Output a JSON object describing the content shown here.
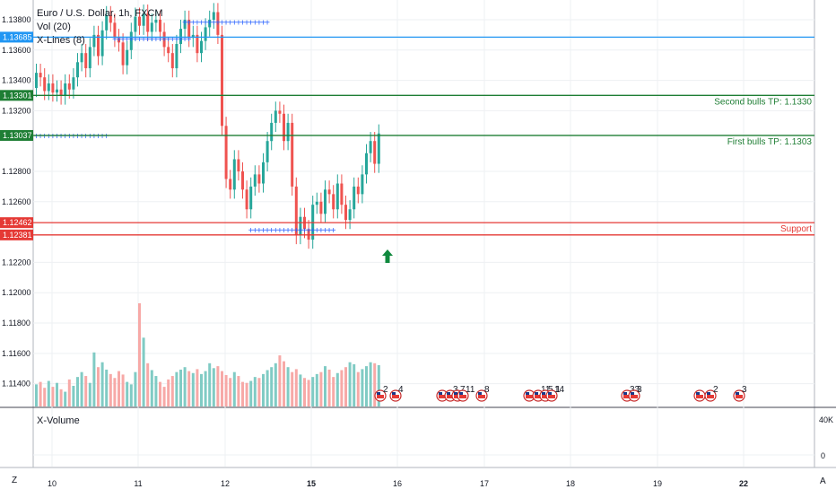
{
  "header": {
    "title": "Euro / U.S. Dollar, 1h, FXCM",
    "indicator_1": "Vol (20)",
    "indicator_2": "X-Lines (8)"
  },
  "sub_pane": {
    "title": "X-Volume",
    "ticks": [
      "40K",
      "0"
    ]
  },
  "corners": {
    "left": "Z",
    "right": "A"
  },
  "colors": {
    "up": "#26a69a",
    "down": "#ef5350",
    "vol_up": "#80cbc4",
    "vol_down": "#f7a9a7",
    "blue_line": "#2196f3",
    "green_line": "#1e7e34",
    "red_line": "#e53935",
    "grid": "#eef0f3",
    "markers": "#2962ff"
  },
  "chart_data": {
    "type": "candlestick",
    "title": "Euro / U.S. Dollar, 1h, FXCM",
    "ylim": [
      1.1125,
      1.1393
    ],
    "y_ticks": [
      "1.13800",
      "1.13600",
      "1.13400",
      "1.13200",
      "1.12800",
      "1.12600",
      "1.12200",
      "1.12000",
      "1.11800",
      "1.11600",
      "1.11400"
    ],
    "x_ticks": [
      "10",
      "11",
      "12",
      "15",
      "16",
      "17",
      "18",
      "19",
      "22"
    ],
    "x_bold_ticks": [
      "15",
      "22"
    ],
    "levels": [
      {
        "label": "1.13685",
        "value": 1.13685,
        "color": "blue",
        "annotation": ""
      },
      {
        "label": "1.13301",
        "value": 1.13301,
        "color": "green",
        "annotation": "Second bulls TP: 1.1330"
      },
      {
        "label": "1.13037",
        "value": 1.13037,
        "color": "green",
        "annotation": "First bulls TP: 1.1303"
      },
      {
        "label": "1.12462",
        "value": 1.12462,
        "color": "red",
        "annotation": "Support"
      },
      {
        "label": "1.12381",
        "value": 1.12381,
        "color": "red",
        "annotation": ""
      }
    ],
    "dotted_levels": [
      {
        "value": 1.1378,
        "from_bar": 36,
        "to_bar": 56
      },
      {
        "value": 1.1367,
        "from_bar": 19,
        "to_bar": 37
      },
      {
        "value": 1.1303,
        "from_bar": 0,
        "to_bar": 17
      },
      {
        "value": 1.1241,
        "from_bar": 52,
        "to_bar": 72
      }
    ],
    "closes": [
      1.1345,
      1.1342,
      1.1333,
      1.1338,
      1.1332,
      1.1334,
      1.133,
      1.1338,
      1.1334,
      1.1342,
      1.1352,
      1.1358,
      1.1348,
      1.1362,
      1.137,
      1.1356,
      1.1373,
      1.1383,
      1.1378,
      1.1368,
      1.1365,
      1.135,
      1.136,
      1.1372,
      1.1382,
      1.1376,
      1.1384,
      1.1372,
      1.1378,
      1.138,
      1.1372,
      1.1362,
      1.1358,
      1.1348,
      1.1364,
      1.1374,
      1.138,
      1.1368,
      1.137,
      1.1358,
      1.1366,
      1.1375,
      1.138,
      1.1385,
      1.137,
      1.131,
      1.1275,
      1.1268,
      1.1288,
      1.128,
      1.1268,
      1.1255,
      1.127,
      1.1278,
      1.1272,
      1.1286,
      1.13,
      1.1312,
      1.132,
      1.1318,
      1.13,
      1.1312,
      1.127,
      1.1238,
      1.125,
      1.1242,
      1.1235,
      1.1258,
      1.126,
      1.1252,
      1.1268,
      1.1265,
      1.1255,
      1.1272,
      1.1258,
      1.1248,
      1.1255,
      1.127,
      1.1265,
      1.1278,
      1.1292,
      1.13,
      1.1285,
      1.1305
    ],
    "open_first": 1.1335,
    "volumes": [
      45,
      50,
      38,
      52,
      40,
      48,
      35,
      30,
      55,
      42,
      60,
      70,
      62,
      48,
      110,
      80,
      90,
      75,
      66,
      58,
      72,
      65,
      50,
      45,
      70,
      210,
      140,
      88,
      74,
      62,
      50,
      40,
      55,
      62,
      70,
      75,
      80,
      72,
      68,
      76,
      66,
      72,
      88,
      78,
      82,
      72,
      64,
      58,
      70,
      62,
      50,
      48,
      52,
      60,
      58,
      66,
      74,
      80,
      88,
      104,
      92,
      80,
      70,
      76,
      65,
      58,
      54,
      60,
      66,
      70,
      82,
      75,
      60,
      68,
      74,
      80,
      90,
      86,
      70,
      76,
      82,
      90,
      88,
      84
    ]
  }
}
